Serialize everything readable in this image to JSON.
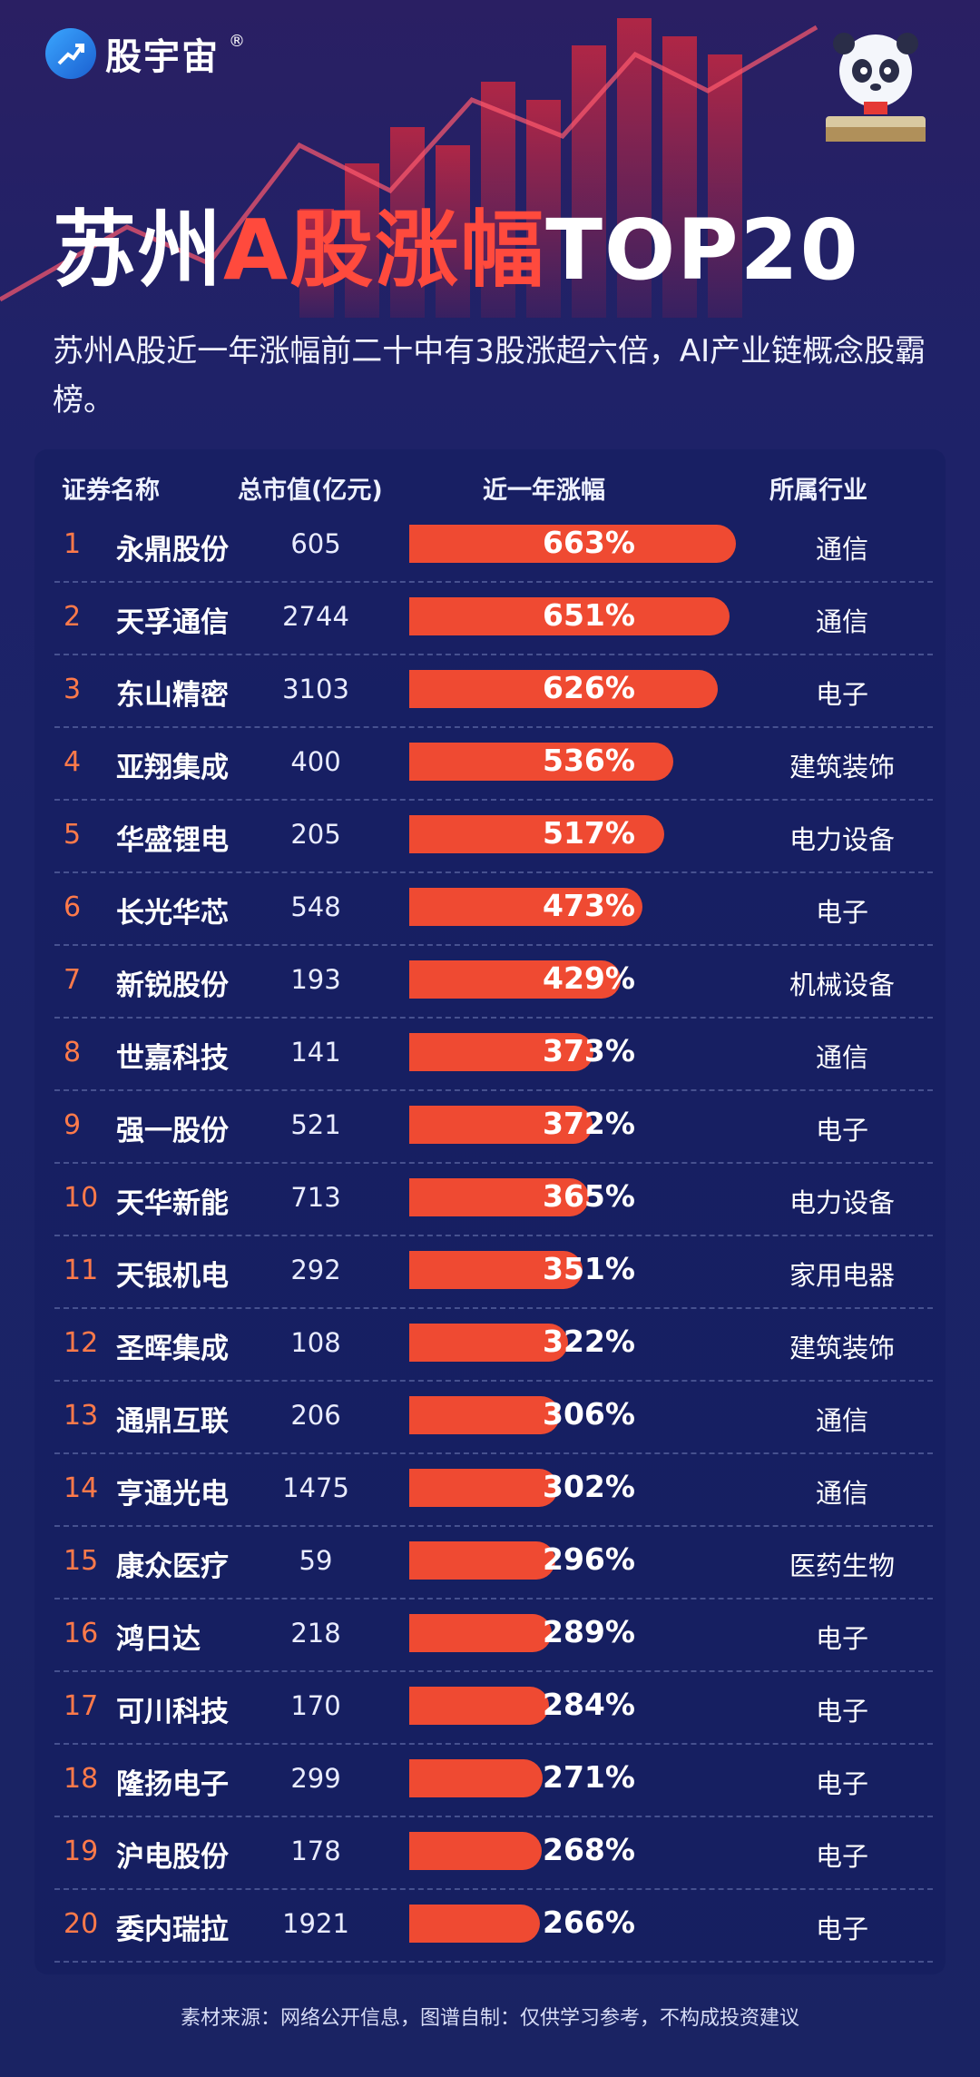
{
  "brand": {
    "name": "股宇宙",
    "reg": "®"
  },
  "title": {
    "part1": "苏州",
    "part2": "A股涨幅",
    "part3": "TOP20"
  },
  "subtitle": "苏州A股近一年涨幅前二十中有3股涨超六倍，AI产业链概念股霸榜。",
  "colors": {
    "accent": "#ef4a32",
    "rank": "#ff7a4a",
    "background": "#1b2368"
  },
  "table": {
    "headers": {
      "name": "证券名称",
      "cap": "总市值(亿元)",
      "gain": "近一年涨幅",
      "industry": "所属行业"
    }
  },
  "chart_data": {
    "type": "bar",
    "orientation": "horizontal",
    "title": "苏州A股涨幅TOP20",
    "xlim": [
      0,
      663
    ],
    "rows": [
      {
        "rank": "1",
        "name": "永鼎股份",
        "cap": "605",
        "gain": 663,
        "gain_label": "663%",
        "industry": "通信"
      },
      {
        "rank": "2",
        "name": "天孚通信",
        "cap": "2744",
        "gain": 651,
        "gain_label": "651%",
        "industry": "通信"
      },
      {
        "rank": "3",
        "name": "东山精密",
        "cap": "3103",
        "gain": 626,
        "gain_label": "626%",
        "industry": "电子"
      },
      {
        "rank": "4",
        "name": "亚翔集成",
        "cap": "400",
        "gain": 536,
        "gain_label": "536%",
        "industry": "建筑装饰"
      },
      {
        "rank": "5",
        "name": "华盛锂电",
        "cap": "205",
        "gain": 517,
        "gain_label": "517%",
        "industry": "电力设备"
      },
      {
        "rank": "6",
        "name": "长光华芯",
        "cap": "548",
        "gain": 473,
        "gain_label": "473%",
        "industry": "电子"
      },
      {
        "rank": "7",
        "name": "新锐股份",
        "cap": "193",
        "gain": 429,
        "gain_label": "429%",
        "industry": "机械设备"
      },
      {
        "rank": "8",
        "name": "世嘉科技",
        "cap": "141",
        "gain": 373,
        "gain_label": "373%",
        "industry": "通信"
      },
      {
        "rank": "9",
        "name": "强一股份",
        "cap": "521",
        "gain": 372,
        "gain_label": "372%",
        "industry": "电子"
      },
      {
        "rank": "10",
        "name": "天华新能",
        "cap": "713",
        "gain": 365,
        "gain_label": "365%",
        "industry": "电力设备"
      },
      {
        "rank": "11",
        "name": "天银机电",
        "cap": "292",
        "gain": 351,
        "gain_label": "351%",
        "industry": "家用电器"
      },
      {
        "rank": "12",
        "name": "圣晖集成",
        "cap": "108",
        "gain": 322,
        "gain_label": "322%",
        "industry": "建筑装饰"
      },
      {
        "rank": "13",
        "name": "通鼎互联",
        "cap": "206",
        "gain": 306,
        "gain_label": "306%",
        "industry": "通信"
      },
      {
        "rank": "14",
        "name": "亨通光电",
        "cap": "1475",
        "gain": 302,
        "gain_label": "302%",
        "industry": "通信"
      },
      {
        "rank": "15",
        "name": "康众医疗",
        "cap": "59",
        "gain": 296,
        "gain_label": "296%",
        "industry": "医药生物"
      },
      {
        "rank": "16",
        "name": "鸿日达",
        "cap": "218",
        "gain": 289,
        "gain_label": "289%",
        "industry": "电子"
      },
      {
        "rank": "17",
        "name": "可川科技",
        "cap": "170",
        "gain": 284,
        "gain_label": "284%",
        "industry": "电子"
      },
      {
        "rank": "18",
        "name": "隆扬电子",
        "cap": "299",
        "gain": 271,
        "gain_label": "271%",
        "industry": "电子"
      },
      {
        "rank": "19",
        "name": "沪电股份",
        "cap": "178",
        "gain": 268,
        "gain_label": "268%",
        "industry": "电子"
      },
      {
        "rank": "20",
        "name": "委内瑞拉",
        "cap": "1921",
        "gain": 266,
        "gain_label": "266%",
        "industry": "电子"
      }
    ]
  },
  "footer": "素材来源：网络公开信息，图谱自制：仅供学习参考，不构成投资建议"
}
